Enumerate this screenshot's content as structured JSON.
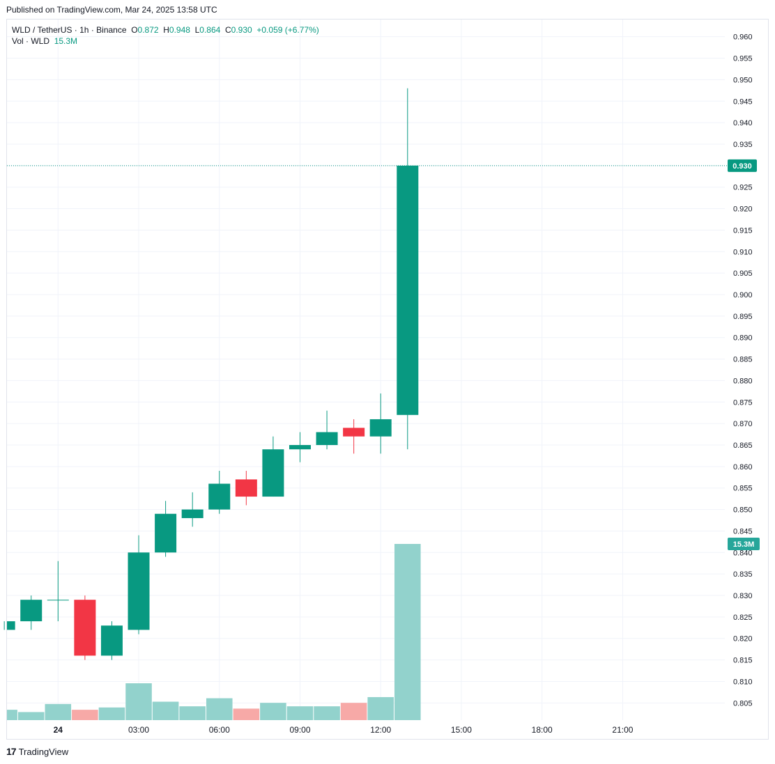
{
  "header": {
    "published": "Published on TradingView.com, Mar 24, 2025 13:58 UTC"
  },
  "legend": {
    "symbol": "WLD / TetherUS · 1h · Binance",
    "o_label": "O",
    "o_value": "0.872",
    "h_label": "H",
    "h_value": "0.948",
    "l_label": "L",
    "l_value": "0.864",
    "c_label": "C",
    "c_value": "0.930",
    "change": "+0.059 (+6.77%)",
    "vol_label": "Vol · WLD",
    "vol_value": "15.3M"
  },
  "footer": {
    "brand": "TradingView",
    "logo_text": "17"
  },
  "colors": {
    "up": "#089981",
    "down": "#f23645",
    "vol_up": "#92d2cc",
    "vol_down": "#f7a9a7",
    "grid": "#f0f3fa",
    "text": "#131722"
  },
  "chart_data": {
    "type": "candlestick",
    "title": "WLD / TetherUS · 1h · Binance",
    "ylim": [
      0.801,
      0.964
    ],
    "y_ticks": [
      "0.960",
      "0.955",
      "0.950",
      "0.945",
      "0.940",
      "0.935",
      "0.930",
      "0.925",
      "0.920",
      "0.915",
      "0.910",
      "0.905",
      "0.900",
      "0.895",
      "0.890",
      "0.885",
      "0.880",
      "0.875",
      "0.870",
      "0.865",
      "0.860",
      "0.855",
      "0.850",
      "0.845",
      "0.840",
      "0.835",
      "0.830",
      "0.825",
      "0.820",
      "0.815",
      "0.810",
      "0.805"
    ],
    "x_ticks": [
      {
        "label": "24",
        "hour": 0,
        "bold": true
      },
      {
        "label": "03:00",
        "hour": 3
      },
      {
        "label": "06:00",
        "hour": 6
      },
      {
        "label": "09:00",
        "hour": 9
      },
      {
        "label": "12:00",
        "hour": 12
      },
      {
        "label": "15:00",
        "hour": 15
      },
      {
        "label": "18:00",
        "hour": 18
      },
      {
        "label": "21:00",
        "hour": 21
      }
    ],
    "x_hour_range": [
      -1.9,
      24.8
    ],
    "last_price": 0.93,
    "last_price_label": "0.930",
    "last_volume_label": "15.3M",
    "volume_max": 15.3,
    "candles": [
      {
        "hour": -2,
        "o": 0.822,
        "h": 0.824,
        "l": 0.822,
        "c": 0.824,
        "v": 0.9
      },
      {
        "hour": -1,
        "o": 0.824,
        "h": 0.83,
        "l": 0.822,
        "c": 0.829,
        "v": 0.7
      },
      {
        "hour": 0,
        "o": 0.829,
        "h": 0.838,
        "l": 0.824,
        "c": 0.829,
        "v": 1.4
      },
      {
        "hour": 1,
        "o": 0.829,
        "h": 0.83,
        "l": 0.815,
        "c": 0.816,
        "v": 0.9
      },
      {
        "hour": 2,
        "o": 0.816,
        "h": 0.824,
        "l": 0.815,
        "c": 0.823,
        "v": 1.1
      },
      {
        "hour": 3,
        "o": 0.822,
        "h": 0.844,
        "l": 0.821,
        "c": 0.84,
        "v": 3.2
      },
      {
        "hour": 4,
        "o": 0.84,
        "h": 0.852,
        "l": 0.839,
        "c": 0.849,
        "v": 1.6
      },
      {
        "hour": 5,
        "o": 0.848,
        "h": 0.854,
        "l": 0.846,
        "c": 0.85,
        "v": 1.2
      },
      {
        "hour": 6,
        "o": 0.85,
        "h": 0.859,
        "l": 0.849,
        "c": 0.856,
        "v": 1.9
      },
      {
        "hour": 7,
        "o": 0.857,
        "h": 0.859,
        "l": 0.851,
        "c": 0.853,
        "v": 1.0
      },
      {
        "hour": 8,
        "o": 0.853,
        "h": 0.867,
        "l": 0.853,
        "c": 0.864,
        "v": 1.5
      },
      {
        "hour": 9,
        "o": 0.864,
        "h": 0.868,
        "l": 0.861,
        "c": 0.865,
        "v": 1.2
      },
      {
        "hour": 10,
        "o": 0.865,
        "h": 0.873,
        "l": 0.864,
        "c": 0.868,
        "v": 1.2
      },
      {
        "hour": 11,
        "o": 0.869,
        "h": 0.871,
        "l": 0.863,
        "c": 0.867,
        "v": 1.5
      },
      {
        "hour": 12,
        "o": 0.867,
        "h": 0.877,
        "l": 0.863,
        "c": 0.871,
        "v": 2.0
      },
      {
        "hour": 13,
        "o": 0.872,
        "h": 0.948,
        "l": 0.864,
        "c": 0.93,
        "v": 15.3
      }
    ]
  }
}
